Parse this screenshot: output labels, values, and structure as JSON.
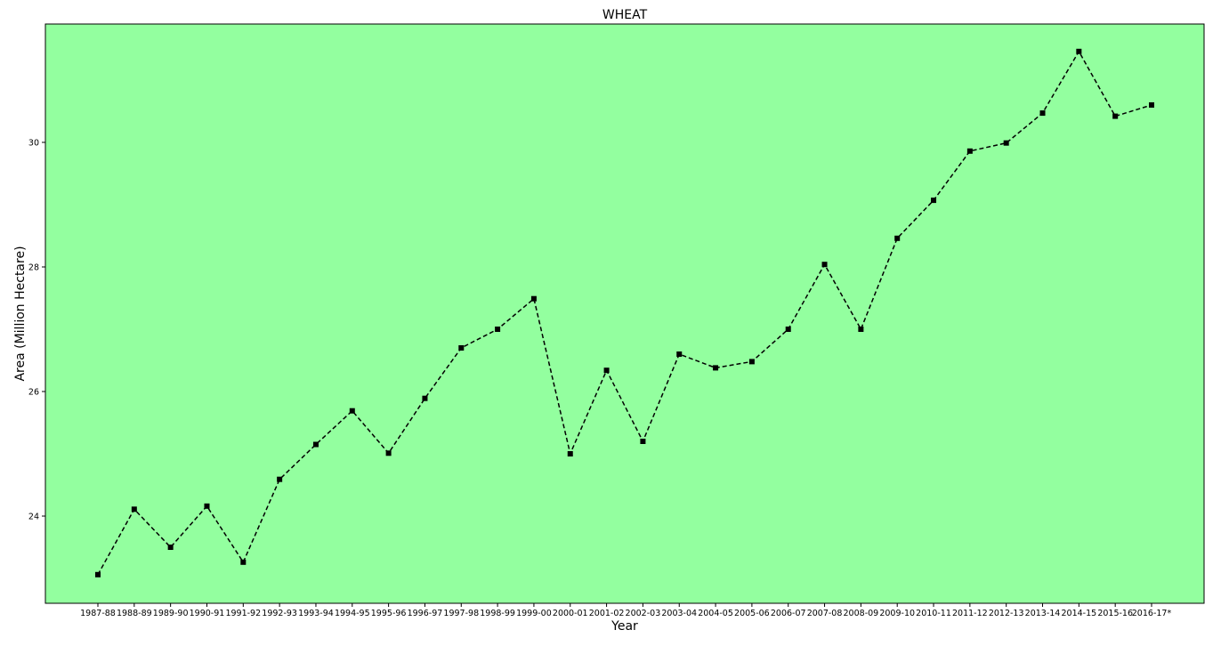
{
  "chart_data": {
    "type": "line",
    "title": "WHEAT",
    "xlabel": "Year",
    "ylabel": "Area  (Million Hectare)",
    "categories": [
      "1987-88",
      "1988-89",
      "1989-90",
      "1990-91",
      "1991-92",
      "1992-93",
      "1993-94",
      "1994-95",
      "1995-96",
      "1996-97",
      "1997-98",
      "1998-99",
      "1999-00",
      "2000-01",
      "2001-02",
      "2002-03",
      "2003-04",
      "2004-05",
      "2005-06",
      "2006-07",
      "2007-08",
      "2008-09",
      "2009-10",
      "2010-11",
      "2011-12",
      "2012-13",
      "2013-14",
      "2014-15",
      "2015-16",
      "2016-17*"
    ],
    "series": [
      {
        "values": [
          23.06,
          24.11,
          23.5,
          24.16,
          23.26,
          24.59,
          25.15,
          25.69,
          25.01,
          25.89,
          26.7,
          27.0,
          27.49,
          25.0,
          26.34,
          25.2,
          26.6,
          26.38,
          26.48,
          27.0,
          28.04,
          27.0,
          28.46,
          29.07,
          29.86,
          29.99,
          30.47,
          31.46,
          30.42,
          30.6
        ]
      }
    ],
    "yticks": [
      24,
      26,
      28,
      30
    ],
    "ylim": [
      22.6,
      31.9
    ],
    "grid": false,
    "colors": {
      "plot_background": "#93ff9f",
      "line": "#000000",
      "marker": "#000000"
    },
    "line_style": "dashed",
    "marker": "square"
  }
}
